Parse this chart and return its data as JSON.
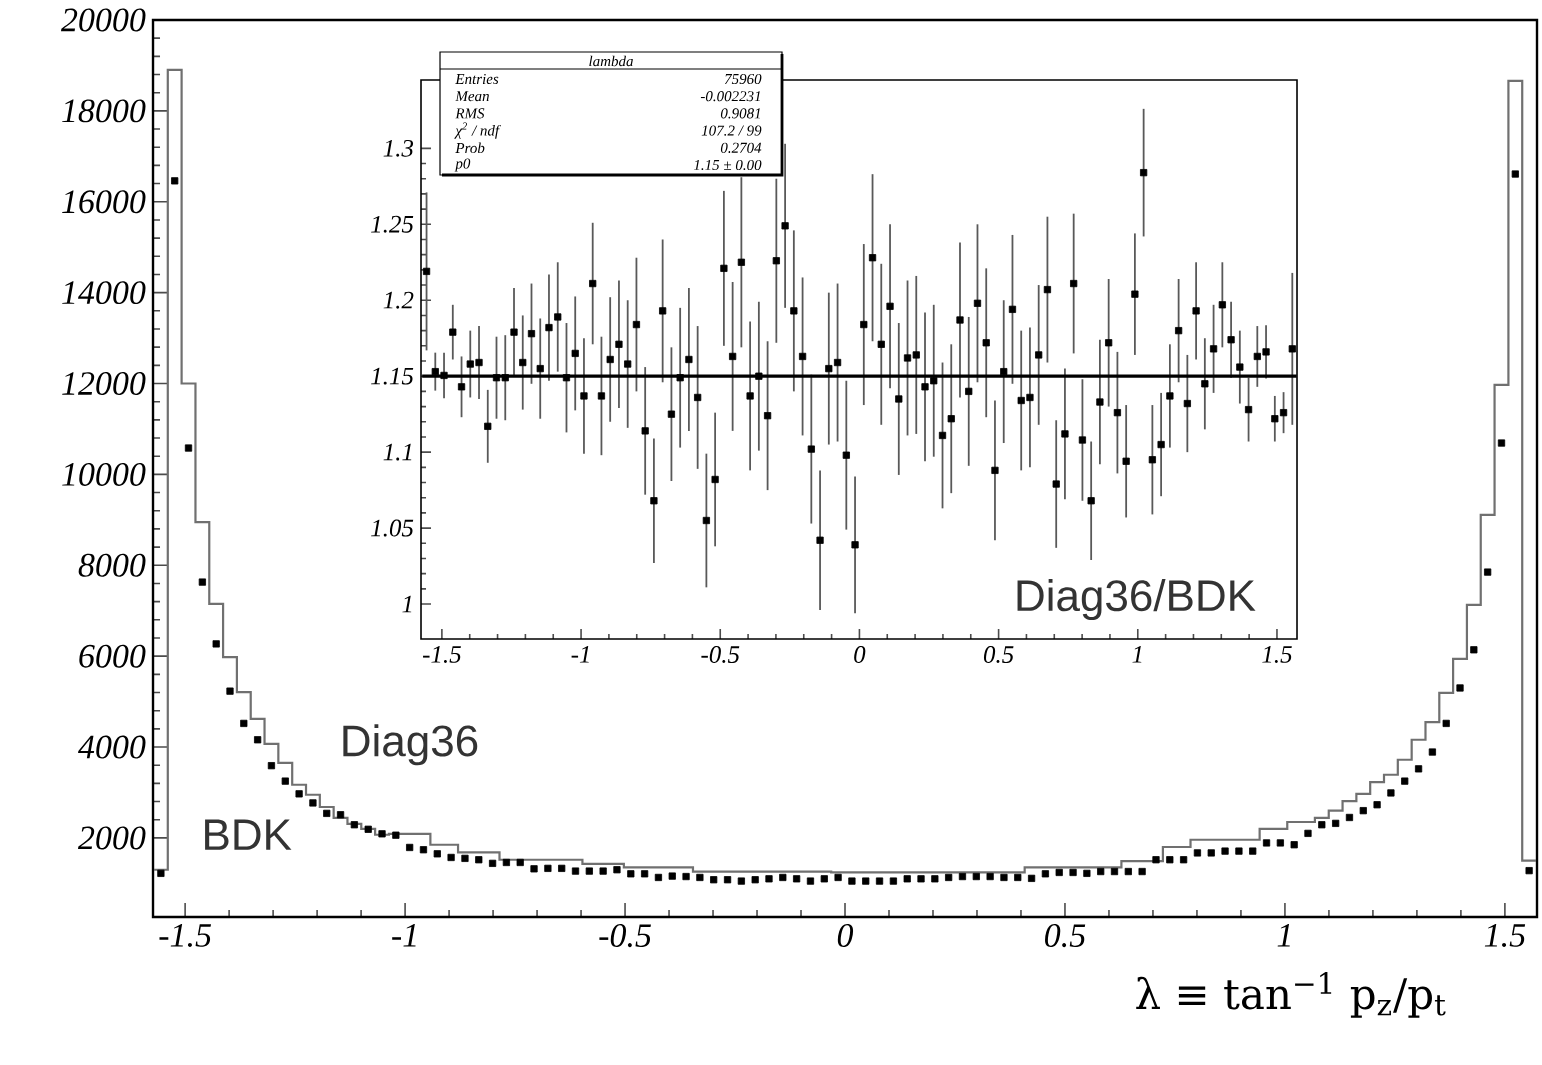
{
  "chart_data": [
    {
      "type": "histogram",
      "xlabel": "λ ≡ tan$^{−1}$ p$_{z}$/p$_{t}$",
      "xlim": [
        -1.573,
        1.573
      ],
      "ylim": [
        260,
        20000
      ],
      "xticks": [
        -1.5,
        -1,
        -0.5,
        0,
        0.5,
        1,
        1.5
      ],
      "yticks": [
        2000,
        4000,
        6000,
        8000,
        10000,
        12000,
        14000,
        16000,
        18000,
        20000
      ],
      "legend": false,
      "grid": false,
      "series": [
        {
          "name": "Diag36",
          "color": "#707070",
          "bins": [
            -1.5708,
            -1.5394,
            -1.508,
            -1.4765,
            -1.4451,
            -1.4137,
            -1.3823,
            -1.3509,
            -1.3195,
            -1.2881,
            -1.2566,
            -1.2252,
            -1.1938,
            -1.1624,
            -1.131,
            -1.0996,
            -1.0681,
            -1.0367,
            -1.0053,
            -0.9739,
            -0.9425,
            -0.9111,
            -0.8796,
            -0.8482,
            -0.8168,
            -0.7854,
            -0.754,
            -0.7226,
            -0.6912,
            -0.6597,
            -0.6283,
            -0.5969,
            -0.5655,
            -0.5341,
            -0.5027,
            -0.4712,
            -0.4398,
            -0.4084,
            -0.377,
            -0.3456,
            -0.3142,
            -0.2827,
            -0.2513,
            -0.2199,
            -0.1885,
            -0.1571,
            -0.1257,
            -0.0942,
            -0.0628,
            -0.0314,
            0,
            0.0314,
            0.0628,
            0.0942,
            0.1257,
            0.1571,
            0.1885,
            0.2199,
            0.2513,
            0.2827,
            0.3142,
            0.3456,
            0.377,
            0.4084,
            0.4398,
            0.4712,
            0.5027,
            0.5341,
            0.5655,
            0.5969,
            0.6283,
            0.6597,
            0.6912,
            0.7226,
            0.754,
            0.7854,
            0.8168,
            0.8482,
            0.8796,
            0.9111,
            0.9425,
            0.9739,
            1.0053,
            1.0367,
            1.0681,
            1.0996,
            1.131,
            1.1624,
            1.1938,
            1.2252,
            1.2566,
            1.2881,
            1.3195,
            1.3509,
            1.3823,
            1.4137,
            1.4451,
            1.4765,
            1.508,
            1.5394,
            1.5708
          ],
          "values": [
            1300,
            18900,
            12000,
            8950,
            7150,
            5980,
            5210,
            4620,
            4070,
            3650,
            3170,
            2950,
            2680,
            2440,
            2310,
            2200,
            2070,
            2090,
            2090,
            2090,
            1850,
            1850,
            1680,
            1680,
            1680,
            1520,
            1520,
            1520,
            1520,
            1520,
            1520,
            1430,
            1430,
            1430,
            1350,
            1350,
            1350,
            1350,
            1350,
            1260,
            1260,
            1260,
            1260,
            1260,
            1260,
            1260,
            1260,
            1260,
            1260,
            1240,
            1240,
            1240,
            1240,
            1240,
            1240,
            1240,
            1240,
            1240,
            1240,
            1240,
            1240,
            1240,
            1240,
            1350,
            1350,
            1350,
            1350,
            1350,
            1350,
            1350,
            1490,
            1490,
            1490,
            1800,
            1800,
            1960,
            1960,
            1960,
            1960,
            1960,
            2200,
            2200,
            2350,
            2350,
            2440,
            2600,
            2810,
            2970,
            3230,
            3390,
            3720,
            4160,
            4550,
            5190,
            5940,
            7130,
            9110,
            11970,
            18660,
            1500
          ]
        },
        {
          "name": "BDK",
          "type": "scatter",
          "color": "#000000",
          "marker": "square",
          "x": [
            -1.5551,
            -1.5237,
            -1.4923,
            -1.4608,
            -1.4294,
            -1.398,
            -1.3666,
            -1.3352,
            -1.3038,
            -1.2723,
            -1.2409,
            -1.2095,
            -1.1781,
            -1.1467,
            -1.1153,
            -1.0838,
            -1.0524,
            -1.021,
            -0.9896,
            -0.9582,
            -0.9268,
            -0.8954,
            -0.8639,
            -0.8325,
            -0.8011,
            -0.7697,
            -0.7383,
            -0.7069,
            -0.6754,
            -0.644,
            -0.6126,
            -0.5812,
            -0.5498,
            -0.5184,
            -0.4869,
            -0.4555,
            -0.4241,
            -0.3927,
            -0.3613,
            -0.3299,
            -0.2985,
            -0.267,
            -0.2356,
            -0.2042,
            -0.1728,
            -0.1414,
            -0.11,
            -0.0785,
            -0.0471,
            -0.0157,
            0.0157,
            0.0471,
            0.0785,
            0.11,
            0.1414,
            0.1728,
            0.2042,
            0.2356,
            0.267,
            0.2985,
            0.3299,
            0.3613,
            0.3927,
            0.4241,
            0.4555,
            0.4869,
            0.5184,
            0.5498,
            0.5812,
            0.6126,
            0.644,
            0.6754,
            0.7069,
            0.7383,
            0.7697,
            0.8011,
            0.8325,
            0.8639,
            0.8954,
            0.9268,
            0.9582,
            0.9896,
            1.021,
            1.0524,
            1.0838,
            1.1153,
            1.1467,
            1.1781,
            1.2095,
            1.2409,
            1.2723,
            1.3038,
            1.3352,
            1.3666,
            1.398,
            1.4294,
            1.4608,
            1.4923,
            1.5237,
            1.5551
          ],
          "values": [
            1220,
            16460,
            10580,
            7630,
            6270,
            5230,
            4520,
            4160,
            3590,
            3250,
            2970,
            2770,
            2540,
            2510,
            2290,
            2190,
            2090,
            2060,
            1790,
            1740,
            1650,
            1570,
            1550,
            1520,
            1440,
            1460,
            1460,
            1320,
            1330,
            1330,
            1270,
            1270,
            1270,
            1300,
            1210,
            1210,
            1130,
            1160,
            1150,
            1130,
            1080,
            1080,
            1050,
            1080,
            1100,
            1130,
            1100,
            1050,
            1100,
            1130,
            1050,
            1050,
            1050,
            1050,
            1100,
            1100,
            1100,
            1130,
            1150,
            1150,
            1150,
            1130,
            1130,
            1110,
            1210,
            1240,
            1240,
            1220,
            1260,
            1260,
            1260,
            1260,
            1520,
            1520,
            1520,
            1670,
            1670,
            1710,
            1710,
            1710,
            1890,
            1890,
            1850,
            2100,
            2290,
            2320,
            2450,
            2600,
            2730,
            2990,
            3250,
            3520,
            3890,
            4520,
            5300,
            6140,
            7850,
            10690,
            16610,
            1280
          ]
        }
      ]
    },
    {
      "type": "scatter",
      "title": "lambda",
      "annotations": [
        "Entries",
        "75960",
        "Mean",
        "-0.002231",
        "RMS",
        "0.9081",
        "χ$^{2}$ / ndf",
        "107.2 / 99",
        "Prob",
        "0.2704",
        "p0",
        "1.15 ± 0.00"
      ],
      "xlim": [
        -1.575,
        1.572
      ],
      "ylim": [
        0.977,
        1.345
      ],
      "xticks": [
        -1.5,
        -1,
        -0.5,
        0,
        0.5,
        1,
        1.5
      ],
      "yticks": [
        1,
        1.05,
        1.1,
        1.15,
        1.2,
        1.25,
        1.3
      ],
      "legend": false,
      "grid": false,
      "series": [
        {
          "name": "Diag36/BDK",
          "color": "#000000",
          "marker": "square",
          "x": [
            -1.5551,
            -1.5237,
            -1.4923,
            -1.4608,
            -1.4294,
            -1.398,
            -1.3666,
            -1.3352,
            -1.3038,
            -1.2723,
            -1.2409,
            -1.2095,
            -1.1781,
            -1.1467,
            -1.1153,
            -1.0838,
            -1.0524,
            -1.021,
            -0.9896,
            -0.9582,
            -0.9268,
            -0.8954,
            -0.8639,
            -0.8325,
            -0.8011,
            -0.7697,
            -0.7383,
            -0.7069,
            -0.6754,
            -0.644,
            -0.6126,
            -0.5812,
            -0.5498,
            -0.5184,
            -0.4869,
            -0.4555,
            -0.4241,
            -0.3927,
            -0.3613,
            -0.3299,
            -0.2985,
            -0.267,
            -0.2356,
            -0.2042,
            -0.1728,
            -0.1414,
            -0.11,
            -0.0785,
            -0.0471,
            -0.0157,
            0.0157,
            0.0471,
            0.0785,
            0.11,
            0.1414,
            0.1728,
            0.2042,
            0.2356,
            0.267,
            0.2985,
            0.3299,
            0.3613,
            0.3927,
            0.4241,
            0.4555,
            0.4869,
            0.5184,
            0.5498,
            0.5812,
            0.6126,
            0.644,
            0.6754,
            0.7069,
            0.7383,
            0.7697,
            0.8011,
            0.8325,
            0.8639,
            0.8954,
            0.9268,
            0.9582,
            0.9896,
            1.021,
            1.0524,
            1.0838,
            1.1153,
            1.1467,
            1.1781,
            1.2095,
            1.2409,
            1.2723,
            1.3038,
            1.3352,
            1.3666,
            1.398,
            1.4294,
            1.4608,
            1.4923,
            1.5237,
            1.5551
          ],
          "values": [
            1.219,
            1.153,
            1.1505,
            1.179,
            1.143,
            1.158,
            1.159,
            1.117,
            1.149,
            1.149,
            1.179,
            1.159,
            1.178,
            1.155,
            1.182,
            1.189,
            1.149,
            1.165,
            1.137,
            1.211,
            1.137,
            1.161,
            1.171,
            1.158,
            1.184,
            1.114,
            1.068,
            1.193,
            1.125,
            1.149,
            1.161,
            1.136,
            1.055,
            1.082,
            1.221,
            1.163,
            1.225,
            1.137,
            1.15,
            1.124,
            1.226,
            1.249,
            1.193,
            1.163,
            1.102,
            1.042,
            1.155,
            1.159,
            1.098,
            1.039,
            1.184,
            1.228,
            1.171,
            1.196,
            1.135,
            1.162,
            1.164,
            1.143,
            1.147,
            1.111,
            1.122,
            1.187,
            1.14,
            1.198,
            1.172,
            1.088,
            1.153,
            1.194,
            1.134,
            1.136,
            1.164,
            1.207,
            1.079,
            1.112,
            1.211,
            1.108,
            1.068,
            1.133,
            1.172,
            1.126,
            1.094,
            1.204,
            1.284,
            1.095,
            1.105,
            1.137,
            1.18,
            1.132,
            1.193,
            1.145,
            1.168,
            1.197,
            1.174,
            1.156,
            1.128,
            1.163,
            1.166,
            1.122,
            1.126,
            1.168
          ],
          "errors": [
            0.052,
            0.0125,
            0.015,
            0.018,
            0.02,
            0.022,
            0.024,
            0.024,
            0.027,
            0.028,
            0.029,
            0.031,
            0.033,
            0.033,
            0.035,
            0.036,
            0.036,
            0.0375,
            0.038,
            0.04,
            0.039,
            0.041,
            0.042,
            0.042,
            0.044,
            0.042,
            0.041,
            0.047,
            0.044,
            0.046,
            0.047,
            0.047,
            0.044,
            0.044,
            0.051,
            0.049,
            0.056,
            0.049,
            0.049,
            0.049,
            0.054,
            0.054,
            0.053,
            0.052,
            0.049,
            0.046,
            0.05,
            0.052,
            0.049,
            0.045,
            0.053,
            0.055,
            0.053,
            0.054,
            0.05,
            0.051,
            0.052,
            0.049,
            0.05,
            0.048,
            0.049,
            0.051,
            0.049,
            0.052,
            0.049,
            0.046,
            0.047,
            0.049,
            0.046,
            0.046,
            0.046,
            0.048,
            0.042,
            0.043,
            0.046,
            0.04,
            0.039,
            0.041,
            0.042,
            0.04,
            0.037,
            0.04,
            0.042,
            0.036,
            0.034,
            0.034,
            0.034,
            0.032,
            0.032,
            0.03,
            0.029,
            0.028,
            0.025,
            0.024,
            0.021,
            0.02,
            0.0175,
            0.015,
            0.0135,
            0.05
          ]
        },
        {
          "type": "line",
          "color": "#000000",
          "line_style": "solid",
          "x": [
            -1.5708,
            1.5708
          ],
          "values": [
            1.15,
            1.15
          ]
        }
      ]
    }
  ]
}
